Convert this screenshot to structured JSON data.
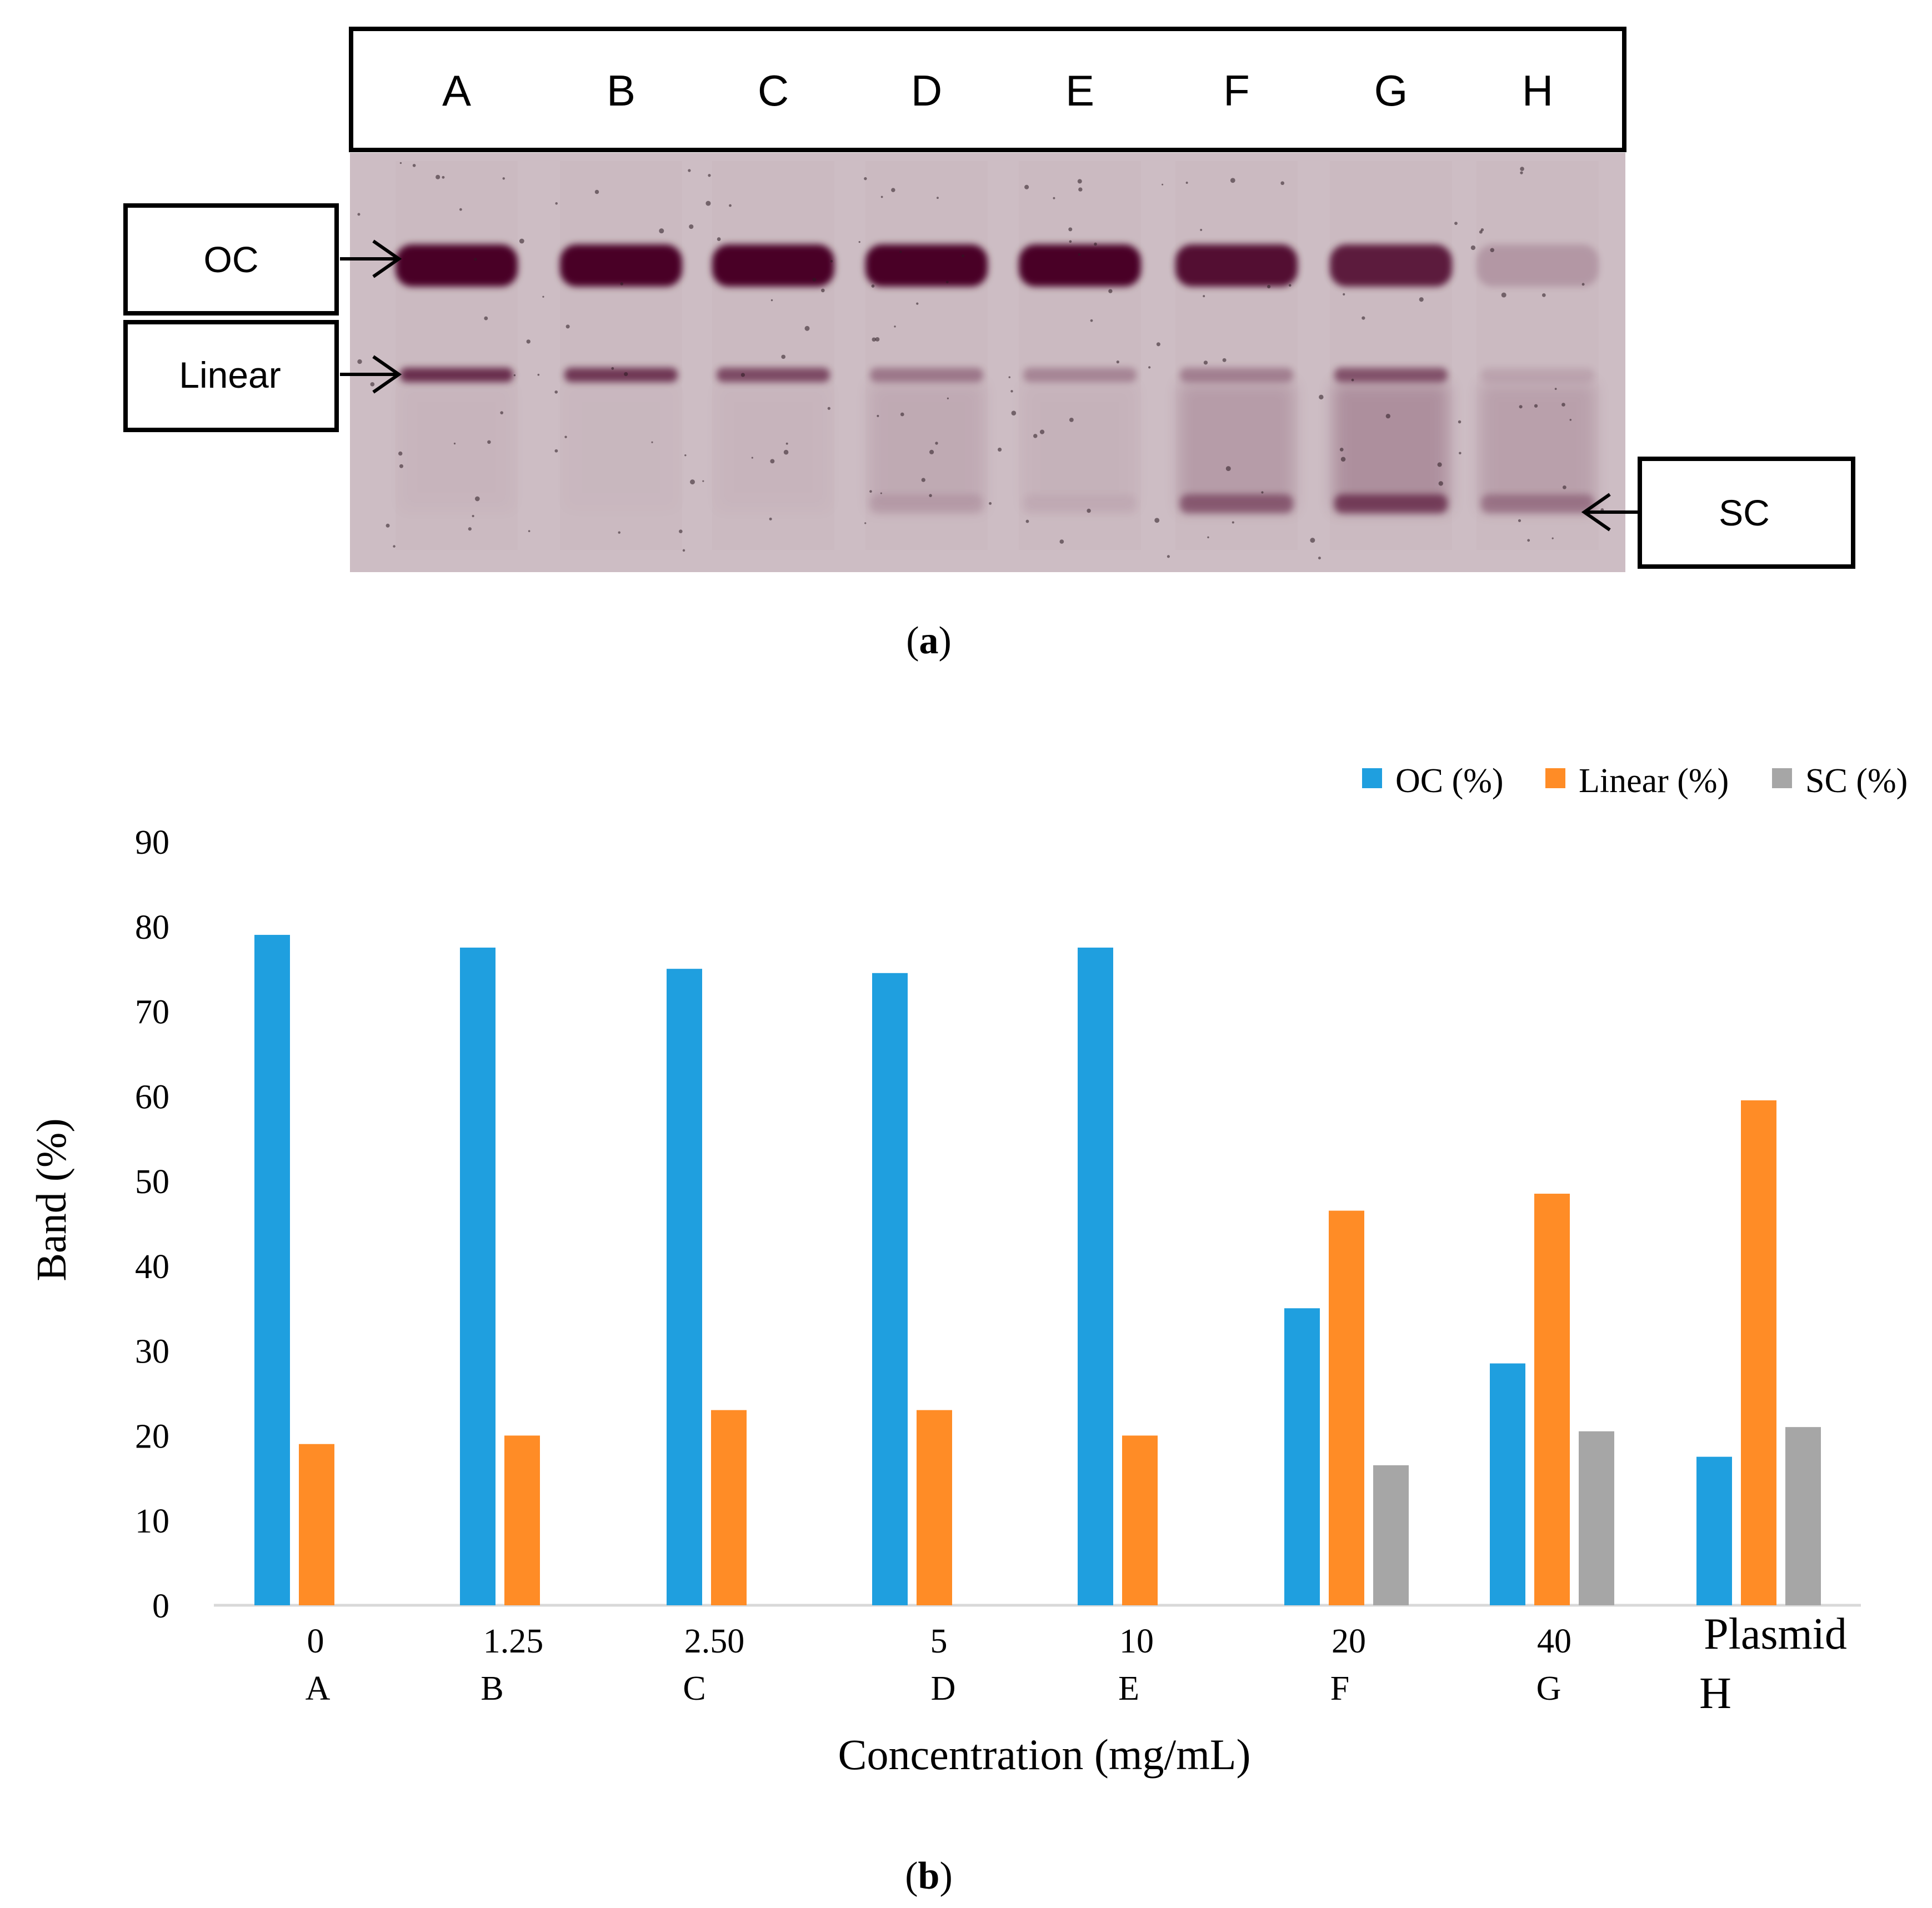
{
  "panel_a": {
    "lanes": [
      "A",
      "B",
      "C",
      "D",
      "E",
      "F",
      "G",
      "H"
    ],
    "band_labels": {
      "oc": "OC",
      "linear": "Linear",
      "sc": "SC"
    },
    "caption": "a",
    "gel_color": "#cdbdc4",
    "band_color": "#4a0226",
    "band_intensity": {
      "oc": [
        1.0,
        1.0,
        1.0,
        1.0,
        1.0,
        0.92,
        0.85,
        0.18
      ],
      "linear": [
        0.75,
        0.7,
        0.6,
        0.35,
        0.28,
        0.3,
        0.55,
        0.1
      ],
      "smear": [
        0.05,
        0.03,
        0.05,
        0.18,
        0.08,
        0.35,
        0.5,
        0.3
      ],
      "sc": [
        0.0,
        0.0,
        0.0,
        0.1,
        0.05,
        0.45,
        0.6,
        0.3
      ]
    }
  },
  "chart_data": {
    "type": "bar",
    "categories": [
      "0\nA",
      "1.25\nB",
      "2.50\nC",
      "5\nD",
      "10\nE",
      "20\nF",
      "40\nG",
      "Plasmid\nH"
    ],
    "category_lines": [
      [
        "0",
        "A"
      ],
      [
        "1.25",
        "B"
      ],
      [
        "2.50",
        "C"
      ],
      [
        "5",
        "D"
      ],
      [
        "10",
        "E"
      ],
      [
        "20",
        "F"
      ],
      [
        "40",
        "G"
      ],
      [
        "Plasmid",
        "H"
      ]
    ],
    "series": [
      {
        "name": "OC (%)",
        "color": "#1f9fdf",
        "values": [
          79,
          77.5,
          75,
          74.5,
          77.5,
          35,
          28.5,
          17.5
        ]
      },
      {
        "name": "Linear (%)",
        "color": "#ff8c26",
        "values": [
          19,
          20,
          23,
          23,
          20,
          46.5,
          48.5,
          59.5
        ]
      },
      {
        "name": "SC (%)",
        "color": "#a6a6a6",
        "values": [
          0,
          0,
          0,
          0,
          0,
          16.5,
          20.5,
          21
        ]
      }
    ],
    "y_ticks": [
      "0",
      "10",
      "20",
      "30",
      "40",
      "50",
      "60",
      "70",
      "80",
      "90"
    ],
    "ylim": [
      0,
      90
    ],
    "xlabel": "Concentration (mg/mL)",
    "ylabel": "Band (%)",
    "legend_position": "top-right",
    "grid": false
  },
  "panel_b": {
    "caption": "b"
  }
}
